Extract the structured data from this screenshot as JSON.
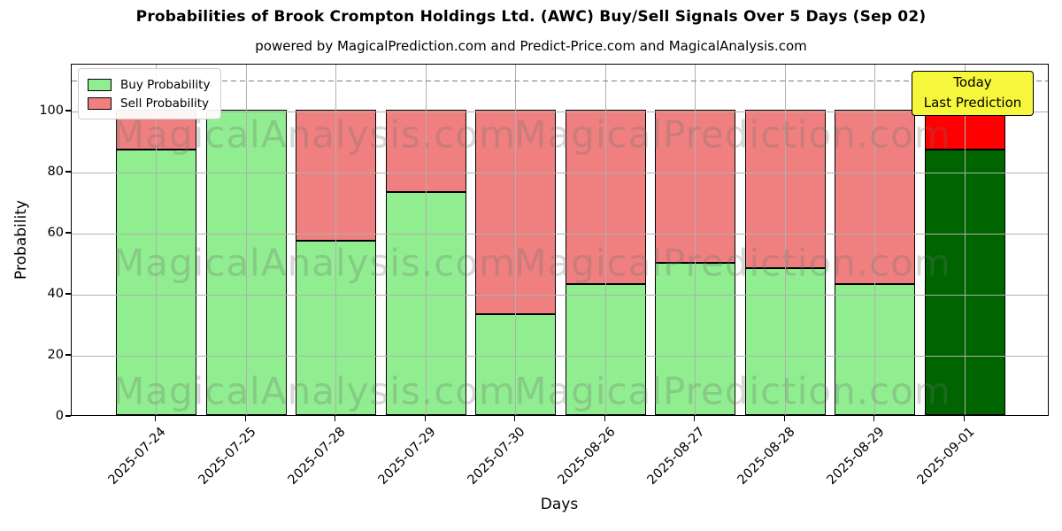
{
  "header": {
    "title": "Probabilities of Brook Crompton Holdings Ltd. (AWC) Buy/Sell Signals Over 5 Days (Sep 02)",
    "subtitle": "powered by MagicalPrediction.com and Predict-Price.com and MagicalAnalysis.com"
  },
  "annotation": {
    "line1": "Today",
    "line2": "Last Prediction",
    "bg_color": "#f6f63c",
    "border_color": "#000000"
  },
  "watermarks": {
    "left_text": "MagicalAnalysis.com",
    "right_text": "MagicalPrediction.com"
  },
  "chart_data": {
    "type": "bar",
    "stacked": true,
    "title": "Probabilities of Brook Crompton Holdings Ltd. (AWC) Buy/Sell Signals Over 5 Days (Sep 02)",
    "xlabel": "Days",
    "ylabel": "Probability",
    "categories": [
      "2025-07-24",
      "2025-07-25",
      "2025-07-28",
      "2025-07-29",
      "2025-07-30",
      "2025-08-26",
      "2025-08-27",
      "2025-08-28",
      "2025-08-29",
      "2025-09-01"
    ],
    "series": [
      {
        "name": "Buy Probability",
        "color": "#90ee90",
        "values": [
          87,
          100,
          57,
          73,
          33,
          43,
          50,
          48,
          43,
          87
        ]
      },
      {
        "name": "Sell Probability",
        "color": "#f08080",
        "values": [
          13,
          0,
          43,
          27,
          67,
          57,
          50,
          52,
          57,
          13
        ]
      }
    ],
    "today_index": 9,
    "today_colors": {
      "buy": "#006400",
      "sell": "#ff0000"
    },
    "bar_edge_color": "#000000",
    "yticks": [
      0,
      20,
      40,
      60,
      80,
      100
    ],
    "ylim": [
      0,
      115.4
    ],
    "dashed_line_y": 110,
    "dashed_line_color": "#7f7f7f",
    "grid": true,
    "grid_color": "#b0b0b0",
    "legend_position": "upper left"
  }
}
